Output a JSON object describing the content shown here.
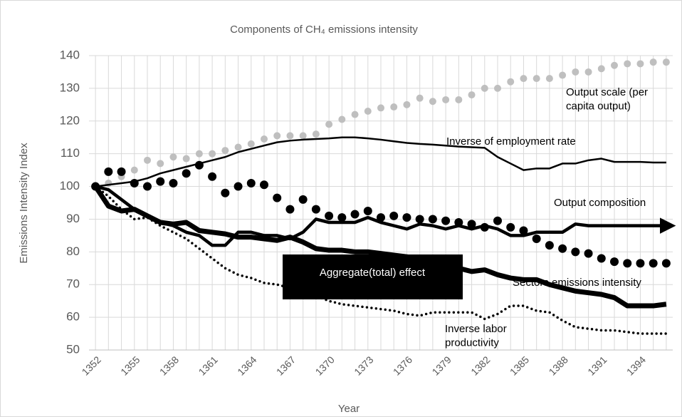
{
  "chart_data": {
    "type": "line",
    "title": "Components of CH₄ emissions intensity",
    "x_label": "Year",
    "y_label": "Emissions Intensity  Index",
    "x": [
      1352,
      1353,
      1354,
      1355,
      1356,
      1357,
      1358,
      1359,
      1360,
      1361,
      1362,
      1363,
      1364,
      1365,
      1366,
      1367,
      1368,
      1369,
      1370,
      1371,
      1372,
      1373,
      1374,
      1375,
      1376,
      1377,
      1378,
      1379,
      1380,
      1381,
      1382,
      1383,
      1384,
      1385,
      1386,
      1387,
      1388,
      1389,
      1390,
      1391,
      1392,
      1393,
      1394,
      1395,
      1396
    ],
    "xlim": [
      1351.5,
      1396.5
    ],
    "xticks": [
      1352,
      1355,
      1358,
      1361,
      1364,
      1367,
      1370,
      1373,
      1376,
      1379,
      1382,
      1385,
      1388,
      1391,
      1394
    ],
    "ylim": [
      50,
      140
    ],
    "yticks": [
      50,
      60,
      70,
      80,
      90,
      100,
      110,
      120,
      130,
      140
    ],
    "grid": true,
    "series": [
      {
        "name": "Output scale (per\ncapita output)",
        "color": "#bfbfbf",
        "style": "markers",
        "values": [
          100,
          101,
          103,
          105,
          108,
          107,
          109,
          108.5,
          110,
          110,
          111,
          112,
          113,
          114.5,
          115.5,
          115.5,
          115.5,
          116,
          119,
          120.5,
          122,
          123,
          124,
          124.3,
          125,
          127,
          126,
          126.5,
          126.5,
          128,
          130,
          130,
          132,
          133,
          133,
          133,
          134,
          135,
          135,
          136,
          137,
          137.5,
          137.5,
          138,
          138
        ]
      },
      {
        "name": "Inverse of employment rate",
        "color": "#000000",
        "style": "thin",
        "values": [
          100,
          100.5,
          101,
          101.5,
          102.5,
          104,
          105,
          106,
          107,
          108,
          109,
          110.5,
          111.5,
          112.5,
          113.5,
          114,
          114.3,
          114.5,
          114.7,
          115,
          115,
          114.7,
          114.3,
          113.8,
          113.3,
          113,
          112.8,
          112.5,
          112.2,
          112,
          111.8,
          109,
          107,
          105,
          105.5,
          105.5,
          107,
          107,
          108,
          108.5,
          107.5,
          107.5,
          107.5,
          107.3,
          107.3
        ]
      },
      {
        "name": "Output composition",
        "color": "#000000",
        "style": "thick",
        "arrow": true,
        "values": [
          100,
          99,
          96,
          93,
          91,
          89,
          88,
          86,
          85,
          82,
          82,
          86,
          86,
          85,
          85,
          84,
          86,
          90,
          89,
          89,
          89,
          90.5,
          89,
          88,
          87,
          88.5,
          88,
          87,
          88,
          87,
          88,
          87,
          85,
          85,
          86,
          86,
          86,
          88.5,
          88,
          88,
          88,
          88,
          88,
          88,
          88
        ]
      },
      {
        "name": "Aggregate(total) effect",
        "color": "#000000",
        "style": "big-markers",
        "boxed": true,
        "values": [
          100,
          104.5,
          104.5,
          101,
          100,
          101.5,
          101,
          104,
          106.5,
          103,
          98,
          100,
          101,
          100.5,
          96.5,
          93,
          96,
          93,
          91,
          90.5,
          91.5,
          92.5,
          90.5,
          91,
          90.5,
          90,
          90,
          89.5,
          89,
          88.5,
          87.5,
          89.5,
          87.5,
          86.5,
          84,
          82,
          81,
          80,
          79.5,
          78,
          77,
          76.5,
          76.5,
          76.5,
          76.5
        ]
      },
      {
        "name": "Sectors emissions intensity",
        "color": "#000000",
        "style": "heavy",
        "values": [
          100,
          94,
          92.5,
          93,
          91,
          89,
          88.5,
          89,
          86.5,
          86,
          85.5,
          84.5,
          84.5,
          84,
          83.5,
          84.5,
          83,
          81,
          80.5,
          80.5,
          80,
          80,
          79.5,
          79,
          78.5,
          78,
          78,
          77.5,
          75,
          74,
          74.5,
          73,
          72,
          71.5,
          71.5,
          70,
          69,
          68,
          67.5,
          67,
          66,
          63.5,
          63.5,
          63.5,
          64
        ]
      },
      {
        "name": "Inverse labor\nproductivity",
        "color": "#000000",
        "style": "dotted",
        "values": [
          100,
          97,
          93,
          90,
          90.5,
          88,
          86,
          84,
          81,
          78,
          75,
          73,
          72,
          70.5,
          70,
          69,
          67,
          66.5,
          65,
          64,
          63.5,
          63,
          62.5,
          62,
          61,
          60.5,
          61.5,
          61.5,
          61.5,
          61.5,
          59.5,
          61,
          63.5,
          63.5,
          62,
          61.5,
          59,
          57,
          56.5,
          56,
          56,
          55.5,
          55,
          55,
          55
        ]
      }
    ]
  }
}
